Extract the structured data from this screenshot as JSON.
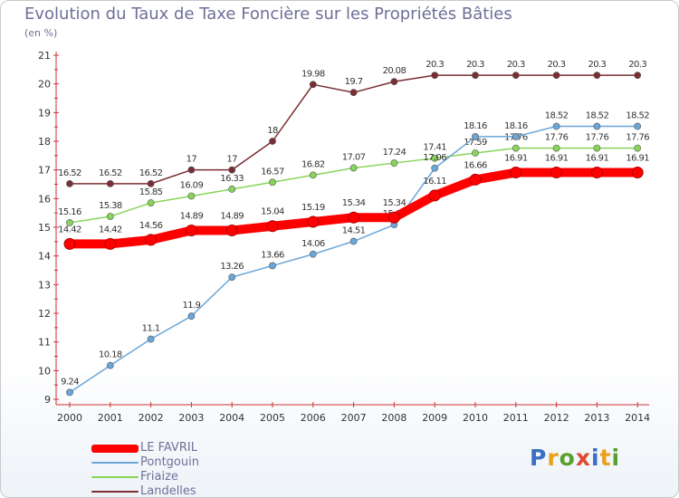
{
  "chart_data": {
    "type": "line",
    "title": "Evolution du Taux de Taxe Foncière sur les Propriétés Bâties",
    "subtitle": "(en %)",
    "x": [
      "2000",
      "2001",
      "2002",
      "2003",
      "2004",
      "2005",
      "2006",
      "2007",
      "2008",
      "2009",
      "2010",
      "2011",
      "2012",
      "2013",
      "2014"
    ],
    "ylim": [
      9,
      21
    ],
    "yticks": [
      "9",
      "10",
      "11",
      "12",
      "13",
      "14",
      "15",
      "16",
      "17",
      "18",
      "19",
      "20",
      "21"
    ],
    "grid": false,
    "legend_position": "bottom-left",
    "series": [
      {
        "name": "Landelles",
        "color": "#7a2e33",
        "values": [
          16.52,
          16.52,
          16.52,
          17,
          17,
          18,
          19.98,
          19.7,
          20.08,
          20.3,
          20.3,
          20.3,
          20.3,
          20.3,
          20.3
        ],
        "labels": [
          "16.52",
          "16.52",
          "16.52",
          "17",
          "17",
          "18",
          "19.98",
          "19.7",
          "20.08",
          "20.3",
          "20.3",
          "20.3",
          "20.3",
          "20.3",
          "20.3"
        ]
      },
      {
        "name": "Friaize",
        "color": "#88d45a",
        "values": [
          15.16,
          15.38,
          15.85,
          16.09,
          16.33,
          16.57,
          16.82,
          17.07,
          17.24,
          17.41,
          17.59,
          17.76,
          17.76,
          17.76,
          17.76
        ],
        "labels": [
          "15.16",
          "15.38",
          "15.85",
          "16.09",
          "16.33",
          "16.57",
          "16.82",
          "17.07",
          "17.24",
          "17.41",
          "17.59",
          "17.76",
          "17.76",
          "17.76",
          "17.76"
        ]
      },
      {
        "name": "Pontgouin",
        "color": "#6aa6d8",
        "values": [
          9.24,
          10.18,
          11.1,
          11.9,
          13.26,
          13.66,
          14.06,
          14.51,
          15.09,
          17.06,
          18.16,
          18.16,
          18.52,
          18.52,
          18.52
        ],
        "labels": [
          "9.24",
          "10.18",
          "11.1",
          "11.9",
          "13.26",
          "13.66",
          "14.06",
          "14.51",
          "15.09",
          "17.06",
          "18.16",
          "18.16",
          "18.52",
          "18.52",
          "18.52"
        ]
      },
      {
        "name": "LE FAVRIL",
        "color": "#ff0000",
        "values": [
          14.42,
          14.42,
          14.56,
          14.89,
          14.89,
          15.04,
          15.19,
          15.34,
          15.34,
          16.11,
          16.66,
          16.91,
          16.91,
          16.91,
          16.91
        ],
        "labels": [
          "14.42",
          "14.42",
          "14.56",
          "14.89",
          "14.89",
          "15.04",
          "15.19",
          "15.34",
          "15.34",
          "16.11",
          "16.66",
          "16.91",
          "16.91",
          "16.91",
          "16.91"
        ]
      }
    ]
  },
  "legend": {
    "items": [
      {
        "label": "LE FAVRIL",
        "color": "#ff0000"
      },
      {
        "label": "Pontgouin",
        "color": "#6aa6d8"
      },
      {
        "label": "Friaize",
        "color": "#88d45a"
      },
      {
        "label": "Landelles",
        "color": "#7a2e33"
      }
    ]
  },
  "logo": {
    "text": "Proxiti"
  }
}
